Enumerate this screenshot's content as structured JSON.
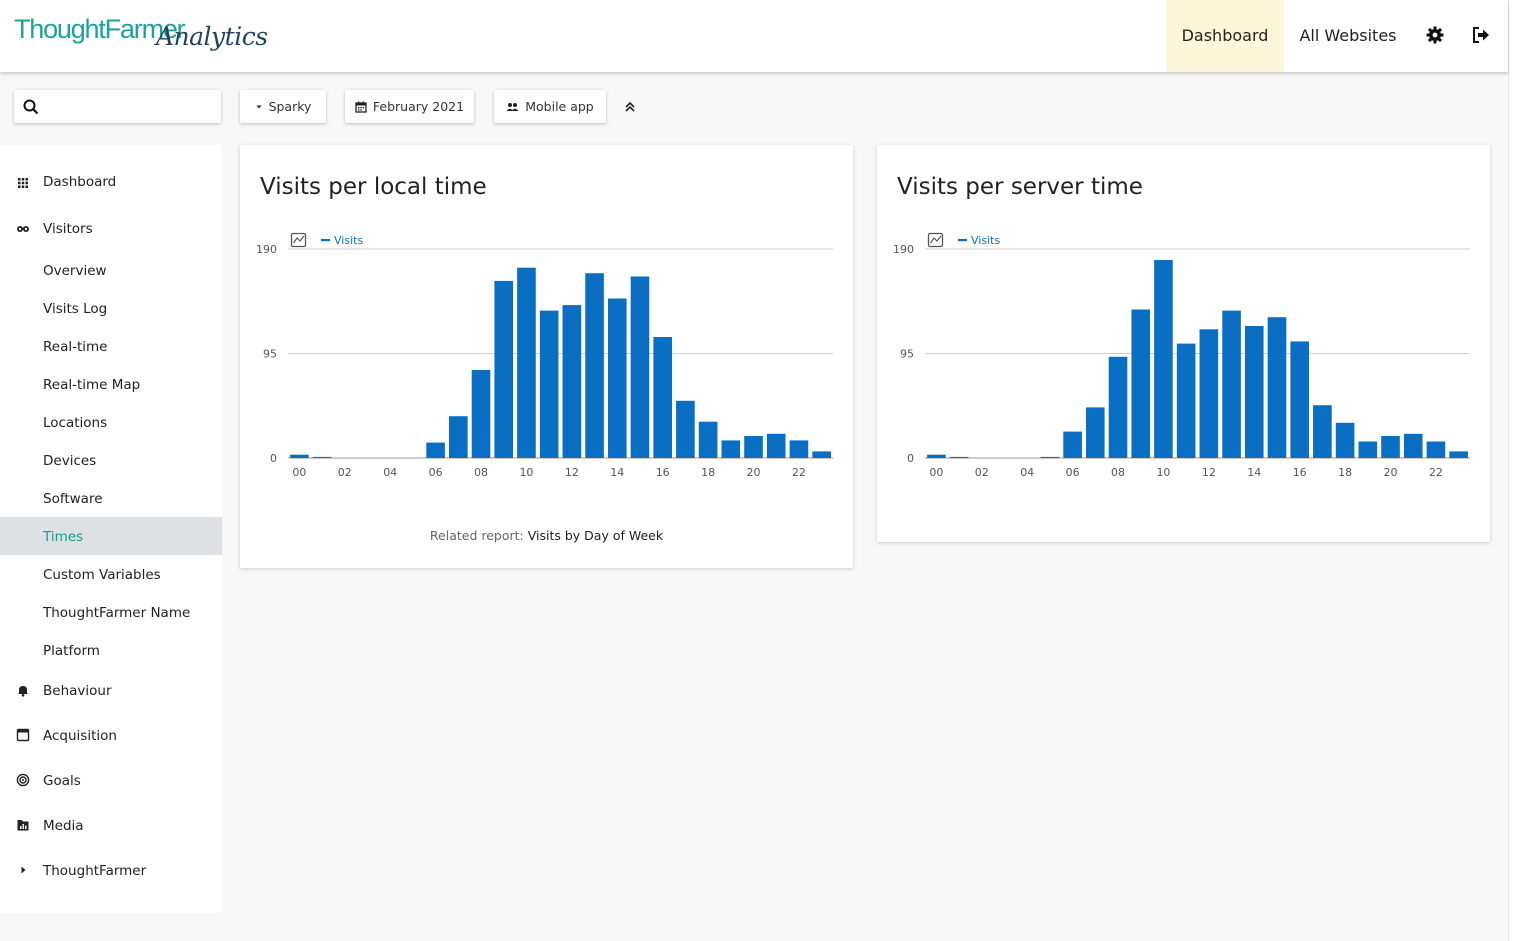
{
  "header": {
    "logo_brand": "ThoughtFarmer",
    "logo_script": "Analytics",
    "nav": {
      "dashboard": "Dashboard",
      "all_websites": "All Websites"
    },
    "active_tab": "Dashboard",
    "icons": [
      "gear-icon",
      "sign-out-icon"
    ]
  },
  "toolbar": {
    "search": {
      "placeholder": "",
      "value": ""
    },
    "site_selector": "Sparky",
    "date_selector": "February 2021",
    "segment_selector": "Mobile app"
  },
  "sidebar": {
    "sections": {
      "dashboard": "Dashboard",
      "visitors": "Visitors",
      "behaviour": "Behaviour",
      "acquisition": "Acquisition",
      "goals": "Goals",
      "media": "Media",
      "thoughtfarmer": "ThoughtFarmer"
    },
    "visitors_items": [
      "Overview",
      "Visits Log",
      "Real-time",
      "Real-time Map",
      "Locations",
      "Devices",
      "Software",
      "Times",
      "Custom Variables",
      "ThoughtFarmer Name",
      "Platform"
    ],
    "active_item": "Times"
  },
  "colors": {
    "accent": "#1a9c95",
    "bar": "#0a6fc2",
    "active_tab_bg": "#fdf6d8",
    "active_item_bg": "#dde1e3"
  },
  "cards": {
    "local": {
      "title": "Visits per local time",
      "related_prefix": "Related report:",
      "related_link": "Visits by Day of Week"
    },
    "server": {
      "title": "Visits per server time"
    }
  },
  "chart_data": [
    {
      "type": "bar",
      "title": "Visits per local time",
      "categories": [
        "00",
        "01",
        "02",
        "03",
        "04",
        "05",
        "06",
        "07",
        "08",
        "09",
        "10",
        "11",
        "12",
        "13",
        "14",
        "15",
        "16",
        "17",
        "18",
        "19",
        "20",
        "21",
        "22",
        "23"
      ],
      "tick_labels": [
        "00",
        "02",
        "04",
        "06",
        "08",
        "10",
        "12",
        "14",
        "16",
        "18",
        "20",
        "22"
      ],
      "series": [
        {
          "name": "Visits",
          "values": [
            3,
            1,
            0,
            0,
            0,
            0,
            14,
            38,
            80,
            161,
            173,
            134,
            139,
            168,
            145,
            165,
            110,
            52,
            33,
            16,
            20,
            22,
            16,
            6
          ]
        }
      ],
      "y_ticks": [
        0,
        95,
        190
      ],
      "ylim": [
        0,
        190
      ],
      "legend": "top-left",
      "grid": true
    },
    {
      "type": "bar",
      "title": "Visits per server time",
      "categories": [
        "00",
        "01",
        "02",
        "03",
        "04",
        "05",
        "06",
        "07",
        "08",
        "09",
        "10",
        "11",
        "12",
        "13",
        "14",
        "15",
        "16",
        "17",
        "18",
        "19",
        "20",
        "21",
        "22",
        "23"
      ],
      "tick_labels": [
        "00",
        "02",
        "04",
        "06",
        "08",
        "10",
        "12",
        "14",
        "16",
        "18",
        "20",
        "22"
      ],
      "series": [
        {
          "name": "Visits",
          "values": [
            3,
            1,
            0,
            0,
            0,
            1,
            24,
            46,
            92,
            135,
            180,
            104,
            117,
            134,
            120,
            128,
            106,
            48,
            32,
            15,
            20,
            22,
            15,
            6
          ]
        }
      ],
      "y_ticks": [
        0,
        95,
        190
      ],
      "ylim": [
        0,
        190
      ],
      "legend": "top-left",
      "grid": true
    }
  ]
}
